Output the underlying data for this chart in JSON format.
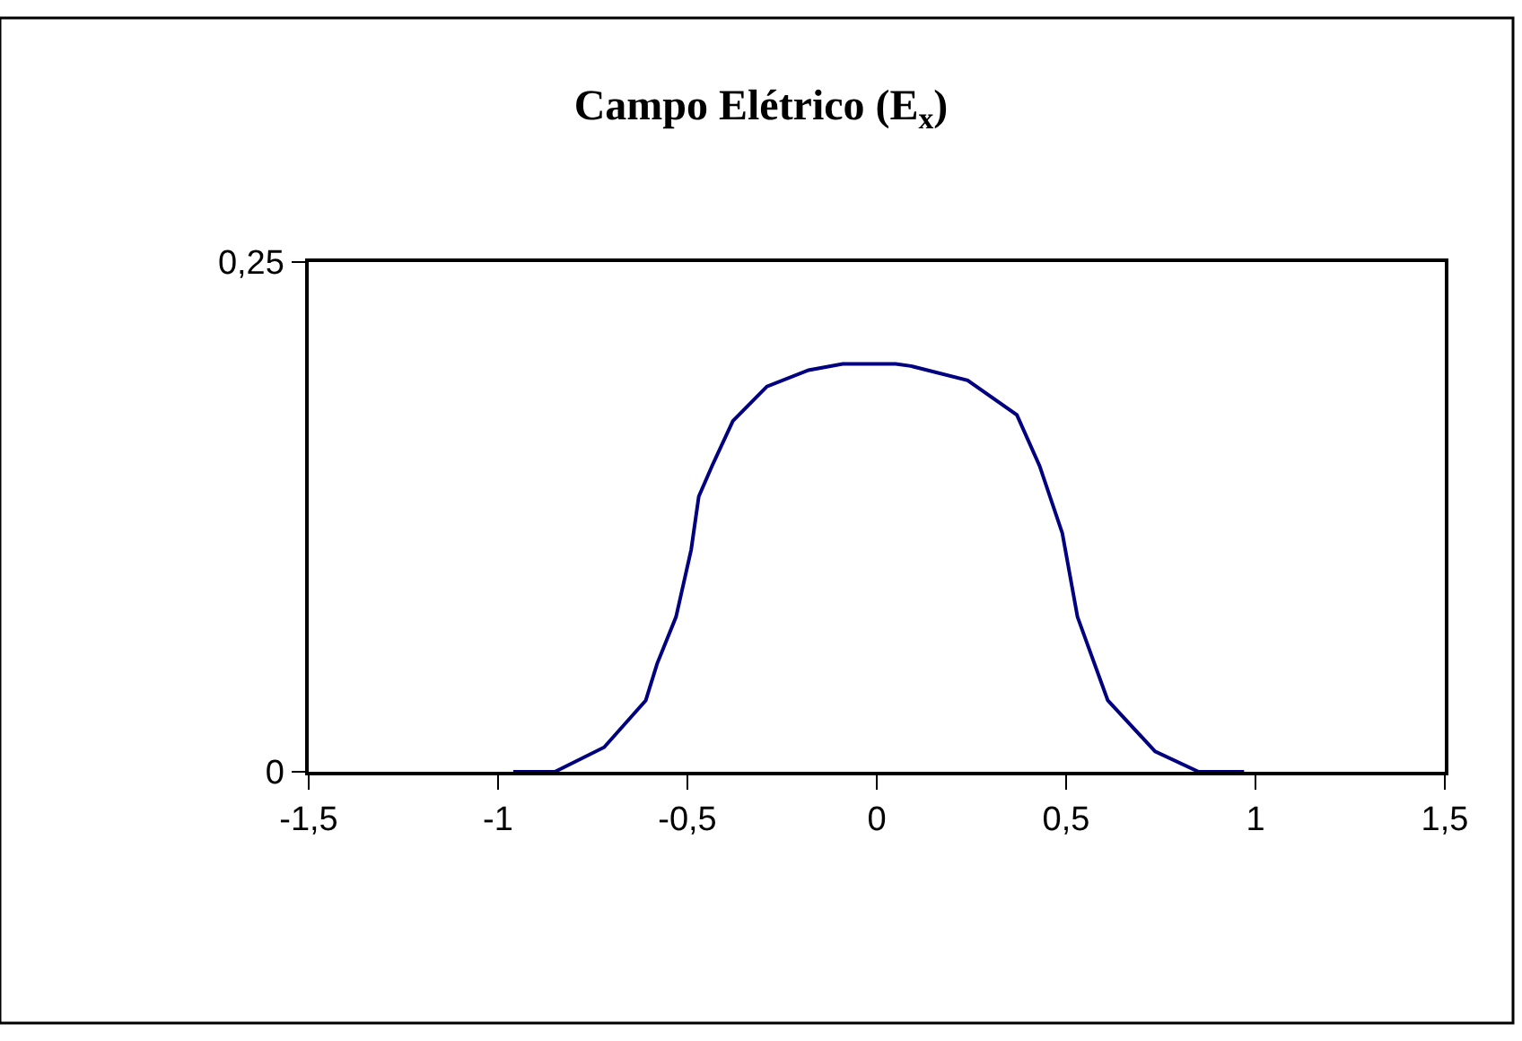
{
  "chart_data": {
    "type": "line",
    "title": "Campo Elétrico (E$_{x}$)",
    "x": [
      -0.96,
      -0.85,
      -0.72,
      -0.61,
      -0.58,
      -0.53,
      -0.49,
      -0.47,
      -0.435,
      -0.38,
      -0.29,
      -0.18,
      -0.09,
      0.05,
      0.09,
      0.24,
      0.37,
      0.43,
      0.49,
      0.53,
      0.61,
      0.735,
      0.85,
      0.97
    ],
    "series": [
      {
        "color": "#000080",
        "values": [
          0,
          0,
          0.012,
          0.035,
          0.053,
          0.076,
          0.109,
          0.135,
          0.15,
          0.172,
          0.189,
          0.197,
          0.2,
          0.2,
          0.199,
          0.192,
          0.175,
          0.15,
          0.117,
          0.076,
          0.035,
          0.01,
          0,
          0
        ]
      }
    ],
    "xlim": [
      -1.5,
      1.5
    ],
    "ylim": [
      0,
      0.25
    ],
    "xticks": [
      {
        "value": -1.5,
        "label": "-1,5"
      },
      -1,
      {
        "value": -0.5,
        "label": "-0,5"
      },
      0,
      {
        "value": 0.5,
        "label": "0,5"
      },
      1,
      {
        "value": 1.5,
        "label": "1,5"
      }
    ],
    "yticks": [
      0,
      {
        "value": 0.25,
        "label": "0,25"
      }
    ],
    "grid": false,
    "legend": false,
    "marker": "none",
    "line_style": "solid"
  }
}
